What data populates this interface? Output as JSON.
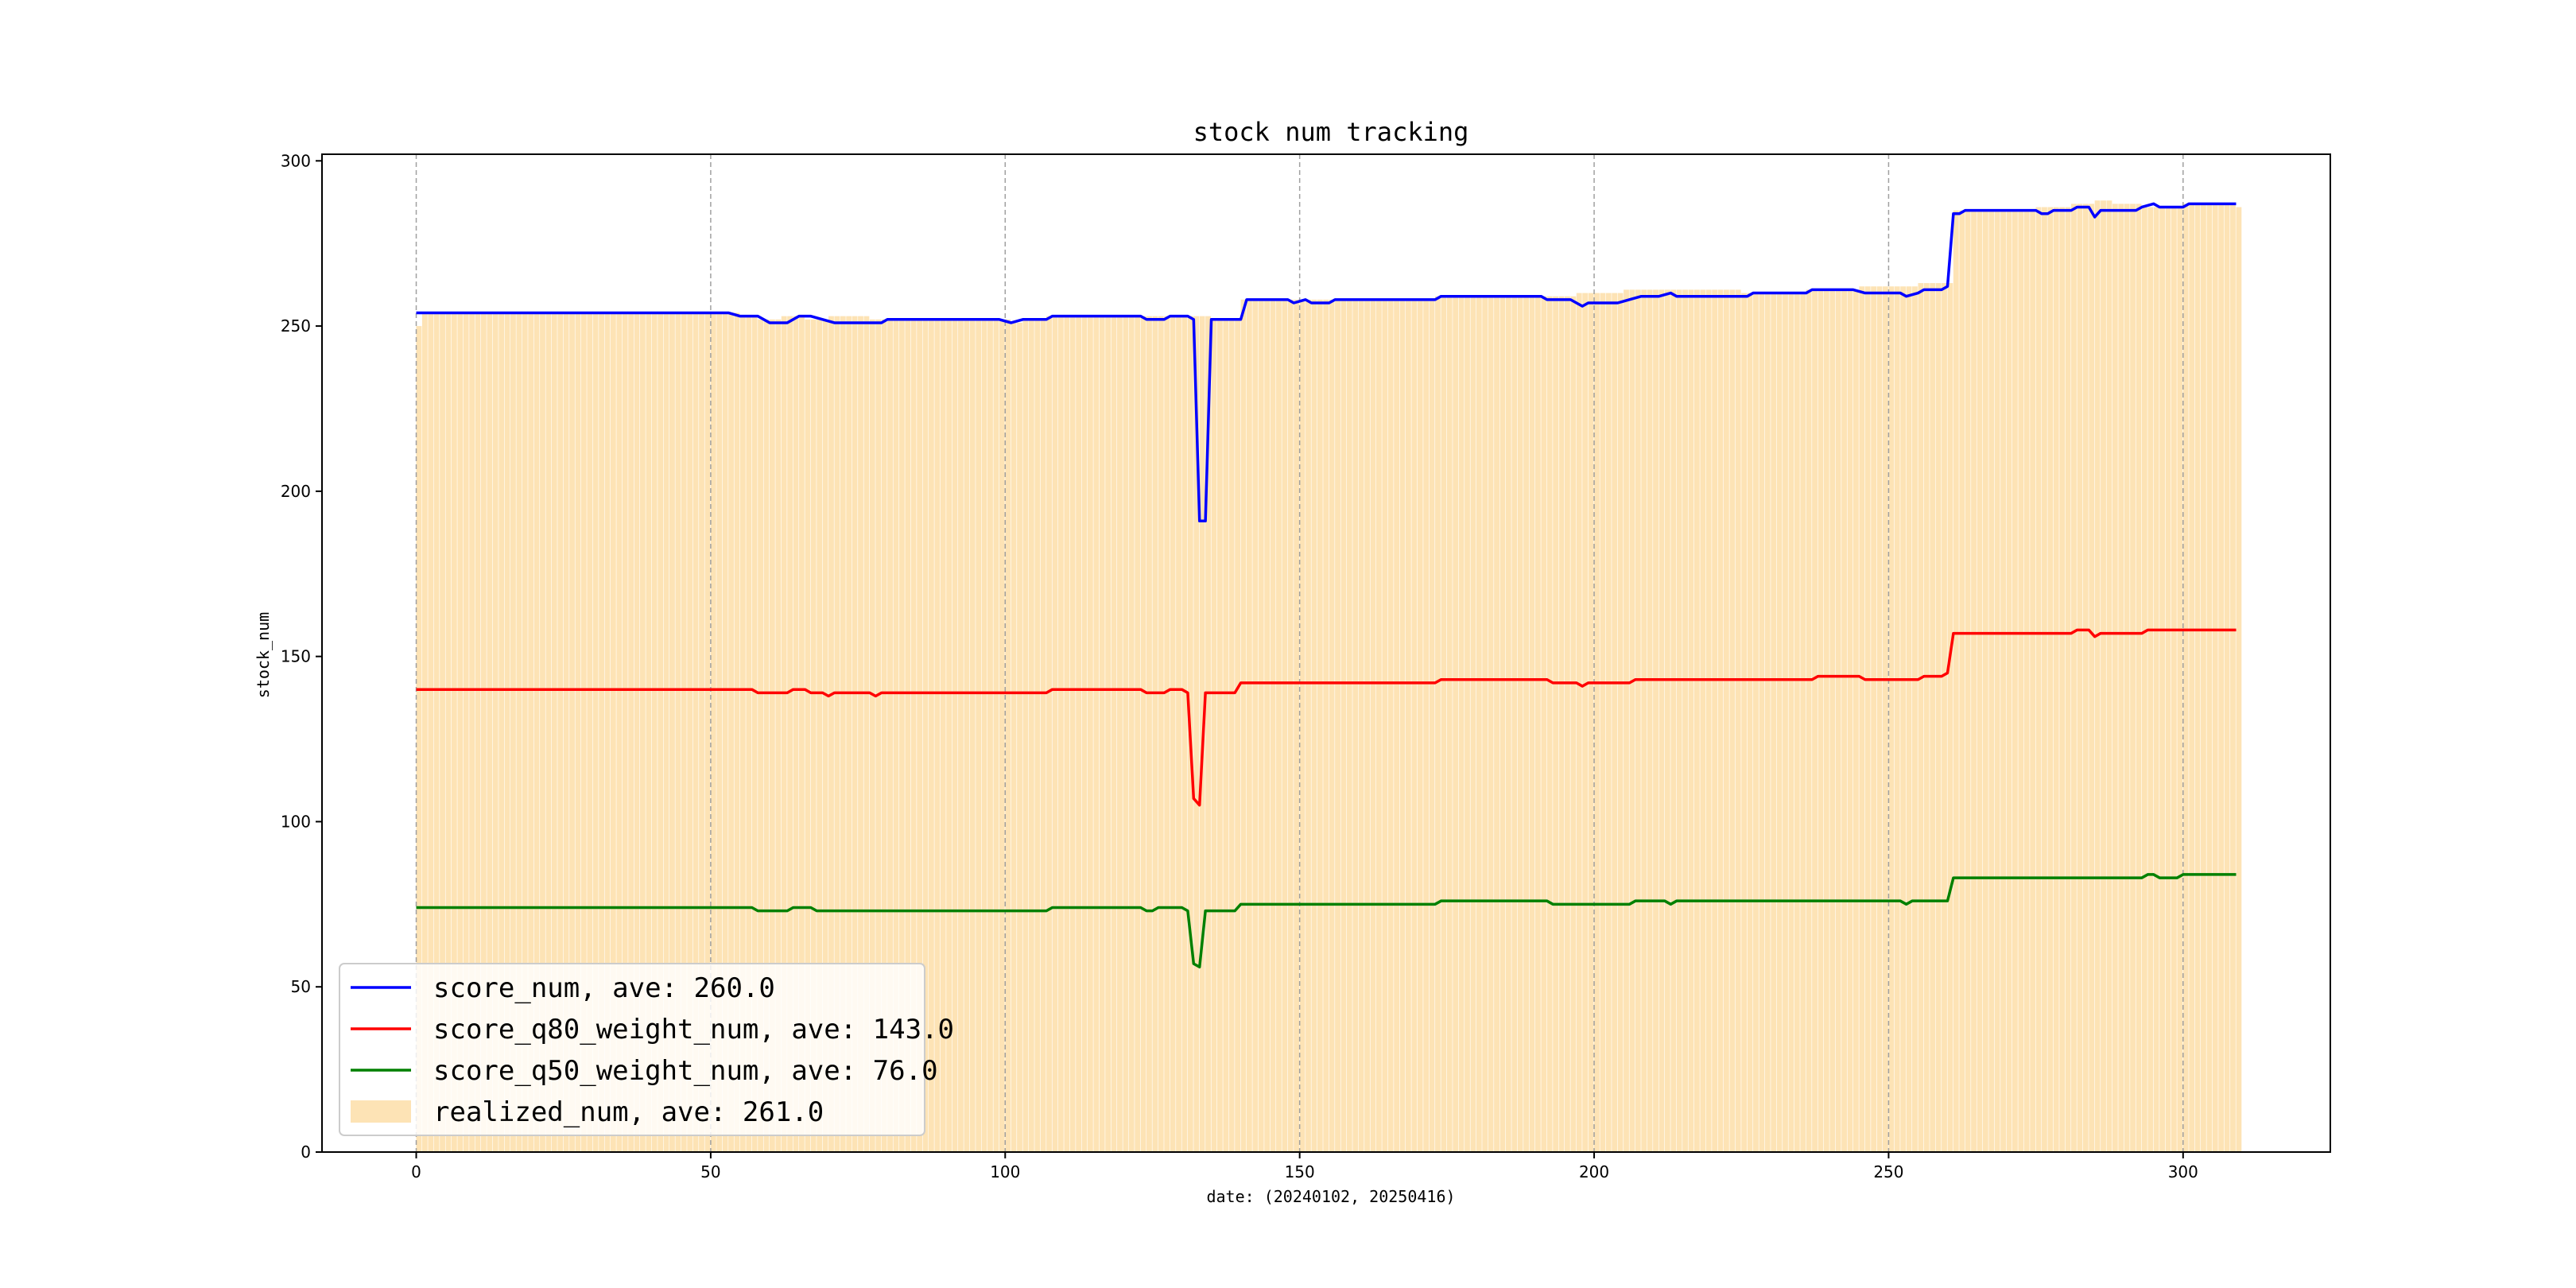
{
  "chart_data": {
    "type": "line",
    "title": "stock num tracking",
    "xlabel": "date: (20240102, 20250416)",
    "ylabel": "stock_num",
    "xlim": [
      -16,
      325
    ],
    "ylim": [
      0,
      302
    ],
    "x_ticks": [
      0,
      50,
      100,
      150,
      200,
      250,
      300
    ],
    "y_ticks": [
      0,
      50,
      100,
      150,
      200,
      250,
      300
    ],
    "vertical_gridlines_at": [
      0,
      50,
      100,
      150,
      200,
      250,
      300
    ],
    "grid": "vertical dashed",
    "legend_position": "lower-left",
    "x_range": [
      0,
      309
    ],
    "series": [
      {
        "name": "score_num, ave: 260.0",
        "kind": "line",
        "color": "#0000ff",
        "points": [
          [
            0,
            254
          ],
          [
            53,
            254
          ],
          [
            55,
            253
          ],
          [
            58,
            253
          ],
          [
            60,
            251
          ],
          [
            63,
            251
          ],
          [
            65,
            253
          ],
          [
            67,
            253
          ],
          [
            69,
            252
          ],
          [
            71,
            251
          ],
          [
            79,
            251
          ],
          [
            80,
            252
          ],
          [
            88,
            252
          ],
          [
            99,
            252
          ],
          [
            101,
            251
          ],
          [
            103,
            252
          ],
          [
            107,
            252
          ],
          [
            108,
            253
          ],
          [
            123,
            253
          ],
          [
            124,
            252
          ],
          [
            127,
            252
          ],
          [
            128,
            253
          ],
          [
            131,
            253
          ],
          [
            132,
            252
          ],
          [
            133,
            191
          ],
          [
            134,
            191
          ],
          [
            135,
            252
          ],
          [
            140,
            252
          ],
          [
            141,
            258
          ],
          [
            148,
            258
          ],
          [
            149,
            257
          ],
          [
            151,
            258
          ],
          [
            152,
            257
          ],
          [
            155,
            257
          ],
          [
            156,
            258
          ],
          [
            173,
            258
          ],
          [
            174,
            259
          ],
          [
            191,
            259
          ],
          [
            192,
            258
          ],
          [
            196,
            258
          ],
          [
            198,
            256
          ],
          [
            199,
            257
          ],
          [
            204,
            257
          ],
          [
            206,
            258
          ],
          [
            208,
            259
          ],
          [
            211,
            259
          ],
          [
            213,
            260
          ],
          [
            214,
            259
          ],
          [
            226,
            259
          ],
          [
            227,
            260
          ],
          [
            236,
            260
          ],
          [
            237,
            261
          ],
          [
            244,
            261
          ],
          [
            246,
            260
          ],
          [
            252,
            260
          ],
          [
            253,
            259
          ],
          [
            255,
            260
          ],
          [
            256,
            261
          ],
          [
            259,
            261
          ],
          [
            260,
            262
          ],
          [
            261,
            284
          ],
          [
            262,
            284
          ],
          [
            263,
            285
          ],
          [
            275,
            285
          ],
          [
            276,
            284
          ],
          [
            277,
            284
          ],
          [
            278,
            285
          ],
          [
            281,
            285
          ],
          [
            282,
            286
          ],
          [
            284,
            286
          ],
          [
            285,
            283
          ],
          [
            286,
            285
          ],
          [
            292,
            285
          ],
          [
            293,
            286
          ],
          [
            295,
            287
          ],
          [
            296,
            286
          ],
          [
            300,
            286
          ],
          [
            301,
            287
          ],
          [
            309,
            287
          ]
        ]
      },
      {
        "name": "score_q80_weight_num, ave: 143.0",
        "kind": "line",
        "color": "#ff0000",
        "points": [
          [
            0,
            140
          ],
          [
            57,
            140
          ],
          [
            58,
            139
          ],
          [
            63,
            139
          ],
          [
            64,
            140
          ],
          [
            66,
            140
          ],
          [
            67,
            139
          ],
          [
            69,
            139
          ],
          [
            70,
            138
          ],
          [
            71,
            139
          ],
          [
            77,
            139
          ],
          [
            78,
            138
          ],
          [
            79,
            139
          ],
          [
            107,
            139
          ],
          [
            108,
            140
          ],
          [
            123,
            140
          ],
          [
            124,
            139
          ],
          [
            127,
            139
          ],
          [
            128,
            140
          ],
          [
            130,
            140
          ],
          [
            131,
            139
          ],
          [
            132,
            107
          ],
          [
            133,
            105
          ],
          [
            134,
            139
          ],
          [
            139,
            139
          ],
          [
            140,
            142
          ],
          [
            173,
            142
          ],
          [
            174,
            143
          ],
          [
            192,
            143
          ],
          [
            193,
            142
          ],
          [
            197,
            142
          ],
          [
            198,
            141
          ],
          [
            199,
            142
          ],
          [
            206,
            142
          ],
          [
            207,
            143
          ],
          [
            237,
            143
          ],
          [
            238,
            144
          ],
          [
            245,
            144
          ],
          [
            246,
            143
          ],
          [
            255,
            143
          ],
          [
            256,
            144
          ],
          [
            259,
            144
          ],
          [
            260,
            145
          ],
          [
            261,
            157
          ],
          [
            281,
            157
          ],
          [
            282,
            158
          ],
          [
            284,
            158
          ],
          [
            285,
            156
          ],
          [
            286,
            157
          ],
          [
            293,
            157
          ],
          [
            294,
            158
          ],
          [
            309,
            158
          ]
        ]
      },
      {
        "name": "score_q50_weight_num, ave: 76.0",
        "kind": "line",
        "color": "#008000",
        "points": [
          [
            0,
            74
          ],
          [
            57,
            74
          ],
          [
            58,
            73
          ],
          [
            63,
            73
          ],
          [
            64,
            74
          ],
          [
            67,
            74
          ],
          [
            68,
            73
          ],
          [
            107,
            73
          ],
          [
            108,
            74
          ],
          [
            123,
            74
          ],
          [
            124,
            73
          ],
          [
            125,
            73
          ],
          [
            126,
            74
          ],
          [
            130,
            74
          ],
          [
            131,
            73
          ],
          [
            132,
            57
          ],
          [
            133,
            56
          ],
          [
            134,
            73
          ],
          [
            139,
            73
          ],
          [
            140,
            75
          ],
          [
            173,
            75
          ],
          [
            174,
            76
          ],
          [
            192,
            76
          ],
          [
            193,
            75
          ],
          [
            206,
            75
          ],
          [
            207,
            76
          ],
          [
            212,
            76
          ],
          [
            213,
            75
          ],
          [
            214,
            76
          ],
          [
            252,
            76
          ],
          [
            253,
            75
          ],
          [
            254,
            76
          ],
          [
            260,
            76
          ],
          [
            261,
            83
          ],
          [
            293,
            83
          ],
          [
            294,
            84
          ],
          [
            295,
            84
          ],
          [
            296,
            83
          ],
          [
            299,
            83
          ],
          [
            300,
            84
          ],
          [
            309,
            84
          ]
        ]
      },
      {
        "name": "realized_num, ave: 261.0",
        "kind": "bar",
        "color": "#fde3b5",
        "points": [
          [
            0,
            250
          ],
          [
            1,
            254
          ],
          [
            53,
            254
          ],
          [
            55,
            253
          ],
          [
            58,
            252
          ],
          [
            62,
            253
          ],
          [
            66,
            252
          ],
          [
            70,
            253
          ],
          [
            77,
            252
          ],
          [
            85,
            252
          ],
          [
            100,
            252
          ],
          [
            101,
            251
          ],
          [
            103,
            252
          ],
          [
            107,
            253
          ],
          [
            123,
            253
          ],
          [
            128,
            253
          ],
          [
            132,
            253
          ],
          [
            135,
            252
          ],
          [
            140,
            258
          ],
          [
            150,
            258
          ],
          [
            155,
            258
          ],
          [
            173,
            259
          ],
          [
            192,
            259
          ],
          [
            197,
            260
          ],
          [
            203,
            260
          ],
          [
            205,
            261
          ],
          [
            214,
            261
          ],
          [
            225,
            260
          ],
          [
            236,
            261
          ],
          [
            245,
            262
          ],
          [
            253,
            262
          ],
          [
            255,
            263
          ],
          [
            260,
            263
          ],
          [
            261,
            285
          ],
          [
            275,
            286
          ],
          [
            276,
            286
          ],
          [
            281,
            287
          ],
          [
            285,
            288
          ],
          [
            288,
            287
          ],
          [
            293,
            286
          ],
          [
            300,
            287
          ],
          [
            309,
            286
          ]
        ]
      }
    ]
  }
}
